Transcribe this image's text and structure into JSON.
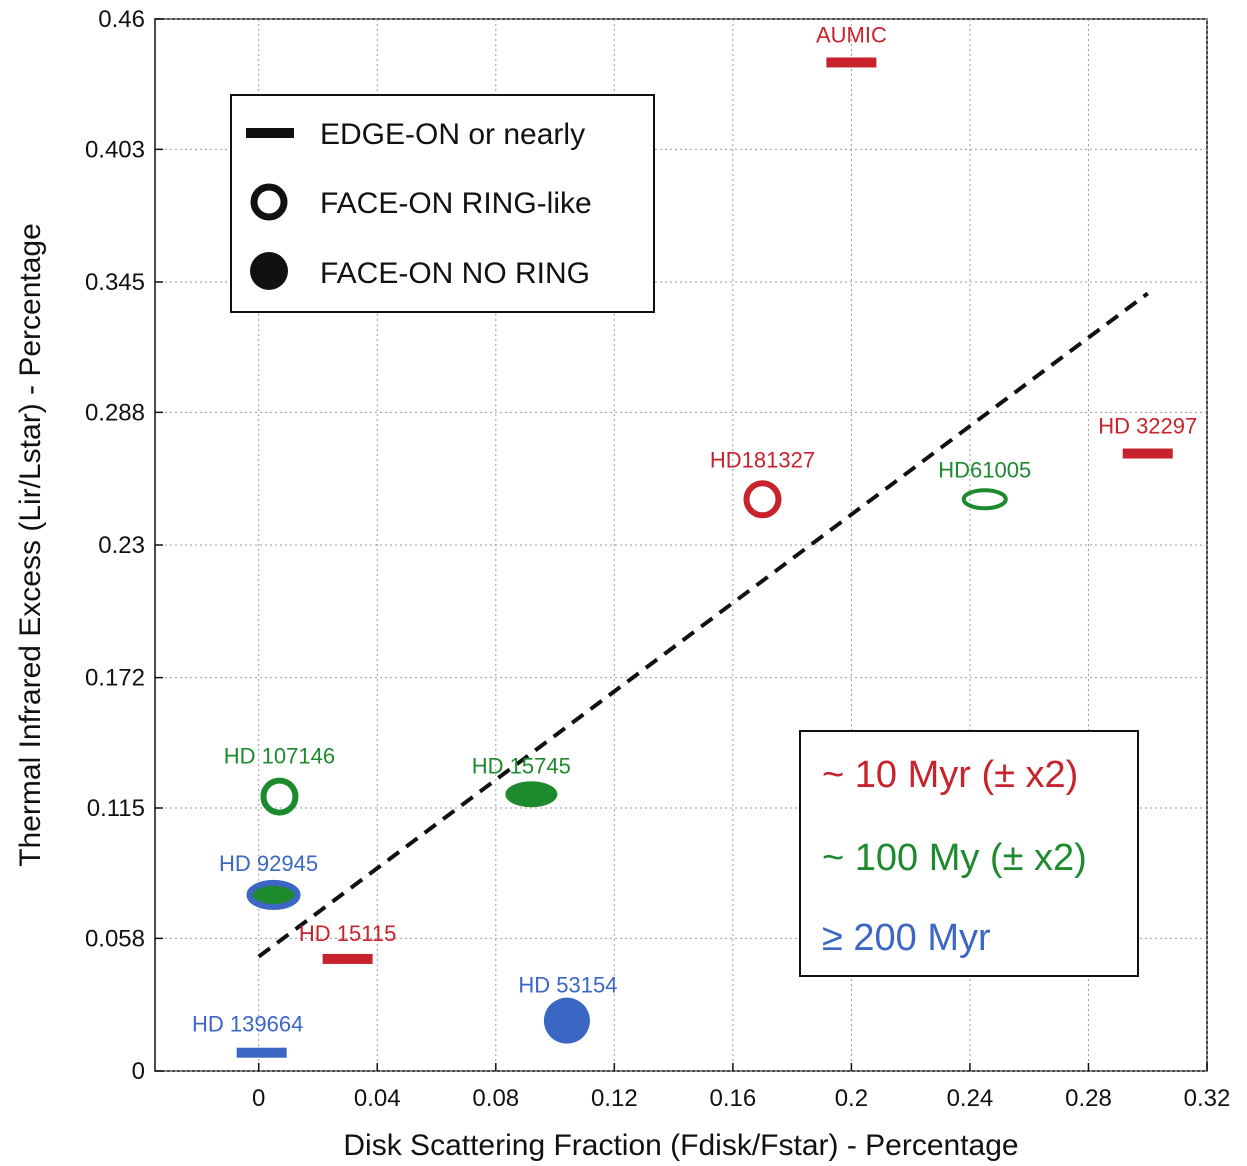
{
  "chart_data": {
    "type": "scatter",
    "xlabel": "Disk Scattering Fraction (Fdisk/Fstar) - Percentage",
    "ylabel": "Thermal Infrared Excess (Lir/Lstar) - Percentage",
    "xlim": [
      -0.035,
      0.32
    ],
    "ylim": [
      0,
      0.46
    ],
    "xticks": [
      "0",
      "0.04",
      "0.08",
      "0.12",
      "0.16",
      "0.2",
      "0.24",
      "0.28",
      "0.32"
    ],
    "yticks": [
      "0",
      "0.058",
      "0.115",
      "0.172",
      "0.23",
      "0.288",
      "0.345",
      "0.403",
      "0.46"
    ],
    "grid": true,
    "points": [
      {
        "name": "AUMIC",
        "x": 0.2,
        "y": 0.441,
        "shape": "bar",
        "color": "#c8232c"
      },
      {
        "name": "HD 32297",
        "x": 0.3,
        "y": 0.27,
        "shape": "bar",
        "color": "#c8232c"
      },
      {
        "name": "HD181327",
        "x": 0.17,
        "y": 0.25,
        "shape": "ring",
        "color": "#c8232c"
      },
      {
        "name": "HD61005",
        "x": 0.245,
        "y": 0.25,
        "shape": "ring-flat",
        "color": "#1e8a2e"
      },
      {
        "name": "HD 107146",
        "x": 0.007,
        "y": 0.12,
        "shape": "ring",
        "color": "#1e8a2e"
      },
      {
        "name": "HD 15745",
        "x": 0.092,
        "y": 0.121,
        "shape": "filled-flat",
        "color": "#1e8a2e"
      },
      {
        "name": "HD 92945",
        "x": 0.005,
        "y": 0.077,
        "shape": "ring-flat-filled",
        "color": "#3b66c4"
      },
      {
        "name": "HD 15115",
        "x": 0.03,
        "y": 0.049,
        "shape": "bar",
        "color": "#c8232c"
      },
      {
        "name": "HD 53154",
        "x": 0.104,
        "y": 0.022,
        "shape": "filled",
        "color": "#3b66c4"
      },
      {
        "name": "HD 139664",
        "x": 0.001,
        "y": 0.008,
        "shape": "bar",
        "color": "#3b66c4"
      }
    ],
    "trend_line": {
      "x": [
        0,
        0.3
      ],
      "y": [
        0.05,
        0.34
      ],
      "style": "dashed"
    },
    "legend": {
      "placement": "top-left",
      "items": [
        {
          "label": "EDGE-ON or nearly",
          "symbol": "bar"
        },
        {
          "label": "FACE-ON RING-like",
          "symbol": "ring"
        },
        {
          "label": "FACE-ON NO RING",
          "symbol": "filled"
        }
      ]
    },
    "age_legend": {
      "placement": "bottom-right",
      "items": [
        {
          "label": "~ 10 Myr (± x2)",
          "color": "#c8232c"
        },
        {
          "label": "~ 100 My (± x2)",
          "color": "#1e8a2e"
        },
        {
          "label": "≥ 200 Myr",
          "color": "#3b66c4"
        }
      ]
    }
  }
}
